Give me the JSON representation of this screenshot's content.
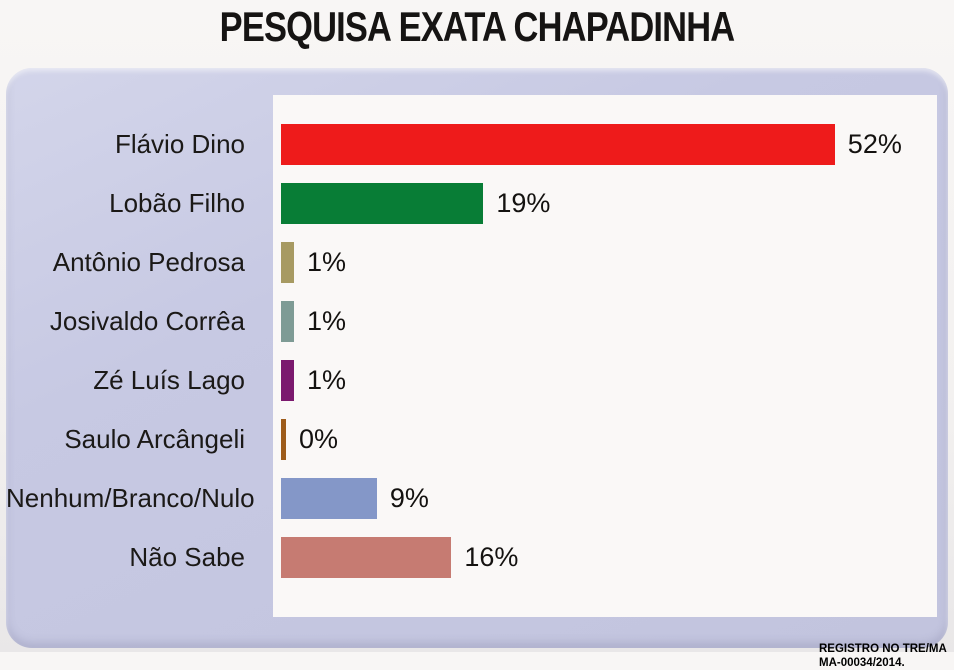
{
  "page": {
    "title": "PESQUISA EXATA CHAPADINHA"
  },
  "chart_data": {
    "type": "bar",
    "orientation": "horizontal",
    "title": "PESQUISA EXATA CHAPADINHA",
    "categories": [
      "Flávio Dino",
      "Lobão Filho",
      "Antônio Pedrosa",
      "Josivaldo Corrêa",
      "Zé Luís Lago",
      "Saulo Arcângeli",
      "Nenhum/Branco/Nulo",
      "Não Sabe"
    ],
    "values": [
      52,
      19,
      1,
      1,
      1,
      0,
      9,
      16
    ],
    "value_labels": [
      "52%",
      "19%",
      "1%",
      "1%",
      "1%",
      "0%",
      "9%",
      "16%"
    ],
    "bar_colors": [
      "#ee1b1b",
      "#087d36",
      "#a79a62",
      "#7e9b95",
      "#7b196e",
      "#9d5c1b",
      "#8497c8",
      "#c67b72"
    ],
    "xlim": [
      0,
      62
    ],
    "grid": false,
    "legend": "none",
    "note": {
      "line1": "REGISTRO NO TRE/MA",
      "line2": "MA-00034/2014."
    }
  },
  "colors": {
    "page_background": "#f3f1f0",
    "panel_background": "#c7c9e3",
    "plot_background": "#faf8f7",
    "text": "#1b1917"
  }
}
